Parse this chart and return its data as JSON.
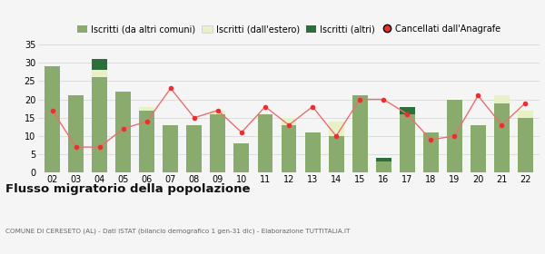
{
  "years": [
    "02",
    "03",
    "04",
    "05",
    "06",
    "07",
    "08",
    "09",
    "10",
    "11",
    "12",
    "13",
    "14",
    "15",
    "16",
    "17",
    "18",
    "19",
    "20",
    "21",
    "22"
  ],
  "iscritti_comuni": [
    29,
    21,
    26,
    22,
    17,
    13,
    13,
    16,
    8,
    16,
    13,
    11,
    10,
    21,
    3,
    16,
    11,
    20,
    13,
    19,
    15
  ],
  "iscritti_estero": [
    0,
    0,
    2,
    0,
    1,
    0,
    0,
    1,
    0,
    0,
    2,
    0,
    4,
    0,
    0,
    0,
    0,
    0,
    0,
    2,
    2
  ],
  "iscritti_altri": [
    0,
    0,
    3,
    0,
    0,
    0,
    0,
    0,
    0,
    0,
    0,
    0,
    0,
    0,
    1,
    2,
    0,
    0,
    0,
    0,
    0
  ],
  "cancellati": [
    17,
    7,
    7,
    12,
    14,
    23,
    15,
    17,
    11,
    18,
    13,
    18,
    10,
    20,
    20,
    16,
    9,
    10,
    21,
    13,
    19
  ],
  "color_comuni": "#8aab6e",
  "color_estero": "#e8f0c8",
  "color_altri": "#2d6e3a",
  "color_cancellati": "#e83030",
  "color_line": "#e87070",
  "ylim_max": 36,
  "yticks": [
    0,
    5,
    10,
    15,
    20,
    25,
    30,
    35
  ],
  "title": "Flusso migratorio della popolazione",
  "subtitle": "COMUNE DI CERESETO (AL) - Dati ISTAT (bilancio demografico 1 gen-31 dic) - Elaborazione TUTTITALIA.IT",
  "legend_labels": [
    "Iscritti (da altri comuni)",
    "Iscritti (dall'estero)",
    "Iscritti (altri)",
    "Cancellati dall'Anagrafe"
  ],
  "bg_color": "#f5f5f5",
  "grid_color": "#dddddd"
}
